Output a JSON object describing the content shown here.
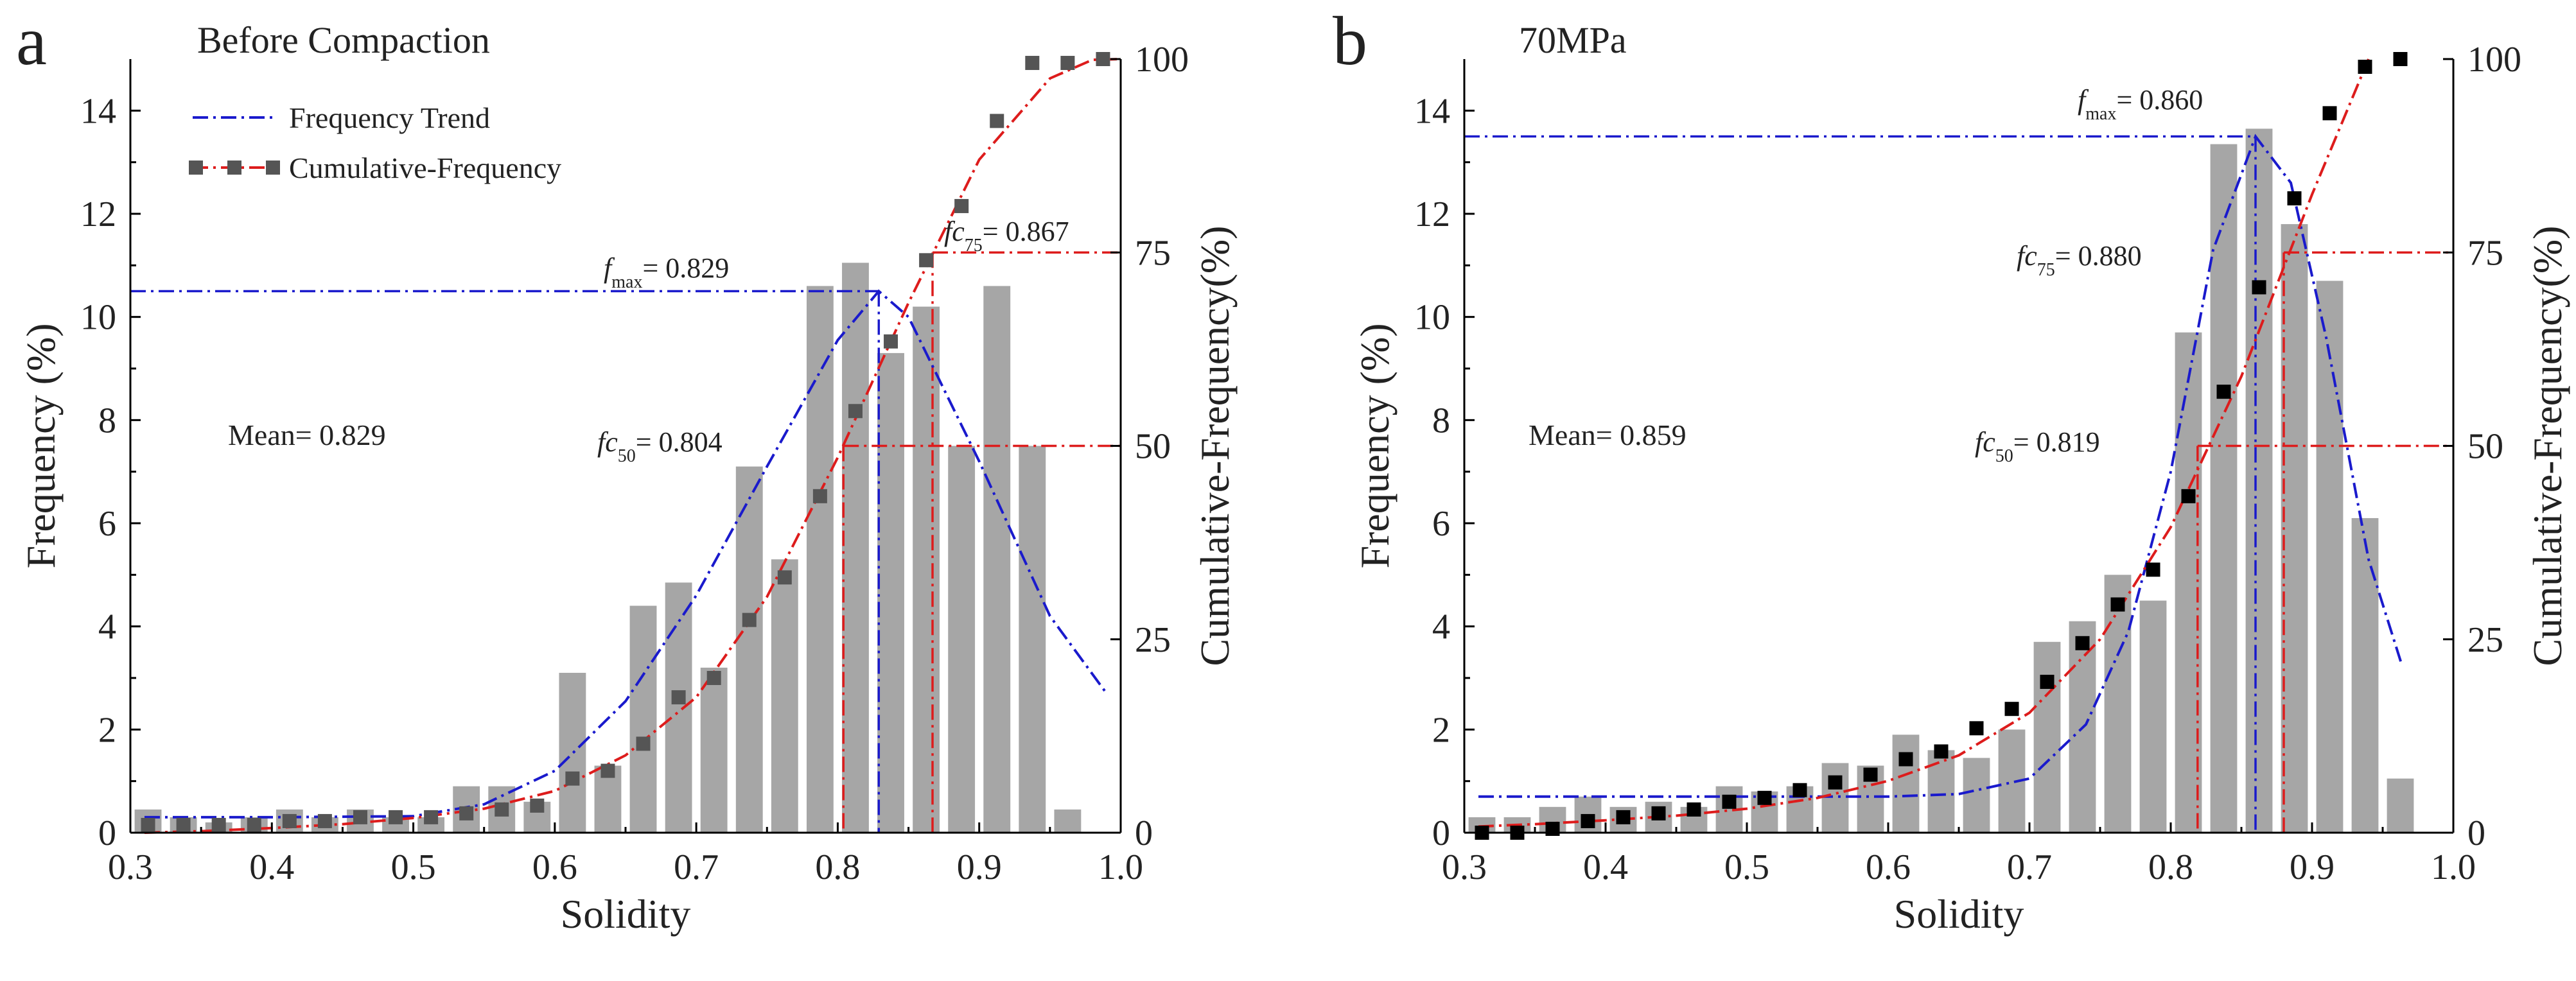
{
  "colors": {
    "bar": "#a6a6a6",
    "trend": "#1a1acc",
    "cumulative": "#dd1c1c",
    "marker_a": "#555555",
    "marker_b": "#000000",
    "axis": "#000000",
    "text": "#222222"
  },
  "chart_data": [
    {
      "panel_letter": "a",
      "title": "Before Compaction",
      "type": "bar",
      "xlabel": "Solidity",
      "ylabel": "Frequency (%)",
      "y2label": "Cumulative-Frequency(%)",
      "xlim": [
        0.3,
        1.0
      ],
      "ylim": [
        0,
        15
      ],
      "y2lim": [
        0,
        100
      ],
      "xticks": [
        "0.3",
        "0.4",
        "0.5",
        "0.6",
        "0.7",
        "0.8",
        "0.9",
        "1.0"
      ],
      "yticks": [
        "0",
        "2",
        "4",
        "6",
        "8",
        "10",
        "12",
        "14"
      ],
      "y2ticks": [
        "0",
        "25",
        "50",
        "75",
        "100"
      ],
      "legend": {
        "placement": "top-left",
        "trend_label": "Frequency Trend",
        "cumulative_label": "Cumulative-Frequency"
      },
      "bars": {
        "x": [
          0.3125,
          0.3375,
          0.3625,
          0.3875,
          0.4125,
          0.4375,
          0.4625,
          0.4875,
          0.5125,
          0.5375,
          0.5625,
          0.5875,
          0.6125,
          0.6375,
          0.6625,
          0.6875,
          0.7125,
          0.7375,
          0.7625,
          0.7875,
          0.8125,
          0.8375,
          0.8625,
          0.8875,
          0.9125,
          0.9375,
          0.9625
        ],
        "values": [
          0.45,
          0.3,
          0.2,
          0.3,
          0.45,
          0.3,
          0.45,
          0.3,
          0.3,
          0.9,
          0.9,
          0.6,
          3.1,
          1.3,
          4.4,
          4.85,
          3.2,
          7.1,
          5.3,
          10.6,
          11.05,
          9.3,
          10.2,
          7.5,
          10.6,
          7.5,
          0.45
        ],
        "width": 0.019
      },
      "cumulative_points": {
        "x": [
          0.3125,
          0.3375,
          0.3625,
          0.3875,
          0.4125,
          0.4375,
          0.4625,
          0.4875,
          0.5125,
          0.5375,
          0.5625,
          0.5875,
          0.6125,
          0.6375,
          0.6625,
          0.6875,
          0.7125,
          0.7375,
          0.7625,
          0.7875,
          0.8125,
          0.8375,
          0.8625,
          0.8875,
          0.9125,
          0.9375,
          0.9625,
          0.9875
        ],
        "y": [
          1,
          1,
          1,
          1,
          1.5,
          1.5,
          2,
          2,
          2,
          2.5,
          3,
          3.5,
          7,
          8,
          11.5,
          17.5,
          20,
          27.5,
          33,
          43.5,
          54.5,
          63.5,
          74,
          81,
          92,
          99.5,
          99.5,
          100
        ]
      },
      "cumulative_fit": {
        "x": [
          0.31,
          0.35,
          0.4,
          0.45,
          0.5,
          0.55,
          0.6,
          0.65,
          0.7,
          0.75,
          0.8,
          0.85,
          0.9,
          0.95,
          0.98,
          1.0
        ],
        "y": [
          0,
          0.2,
          0.6,
          1.1,
          1.9,
          3.1,
          5.4,
          10.0,
          17.5,
          30.5,
          48.5,
          68.5,
          87.0,
          97.5,
          99.9,
          100
        ]
      },
      "trend_fit": {
        "x": [
          0.31,
          0.4,
          0.5,
          0.55,
          0.6,
          0.65,
          0.7,
          0.75,
          0.8,
          0.829,
          0.85,
          0.9,
          0.95,
          0.99
        ],
        "y": [
          0.3,
          0.3,
          0.32,
          0.55,
          1.2,
          2.55,
          4.6,
          7.1,
          9.55,
          10.5,
          10.0,
          7.2,
          4.2,
          2.7
        ]
      },
      "markers": {
        "fmax": {
          "x": 0.829,
          "y": 10.5,
          "label_prefix": "f",
          "label_sub": "max",
          "label_value": "= 0.829"
        },
        "fc50": {
          "x": 0.804,
          "y2": 50,
          "label_prefix": "fc",
          "label_sub": "50",
          "label_value": "= 0.804"
        },
        "fc75": {
          "x": 0.867,
          "y2": 75,
          "label_prefix": "fc",
          "label_sub": "75",
          "label_value": "= 0.867"
        }
      },
      "mean_label": "Mean= 0.829"
    },
    {
      "panel_letter": "b",
      "title": "70MPa",
      "type": "bar",
      "xlabel": "Solidity",
      "ylabel": "Frequency (%)",
      "y2label": "Cumulative-Frequency(%)",
      "xlim": [
        0.3,
        1.0
      ],
      "ylim": [
        0,
        15
      ],
      "y2lim": [
        0,
        100
      ],
      "xticks": [
        "0.3",
        "0.4",
        "0.5",
        "0.6",
        "0.7",
        "0.8",
        "0.9",
        "1.0"
      ],
      "yticks": [
        "0",
        "2",
        "4",
        "6",
        "8",
        "10",
        "12",
        "14"
      ],
      "y2ticks": [
        "0",
        "25",
        "50",
        "75",
        "100"
      ],
      "bars": {
        "x": [
          0.3125,
          0.3375,
          0.3625,
          0.3875,
          0.4125,
          0.4375,
          0.4625,
          0.4875,
          0.5125,
          0.5375,
          0.5625,
          0.5875,
          0.6125,
          0.6375,
          0.6625,
          0.6875,
          0.7125,
          0.7375,
          0.7625,
          0.7875,
          0.8125,
          0.8375,
          0.8625,
          0.8875,
          0.9125,
          0.9375,
          0.9625
        ],
        "values": [
          0.3,
          0.3,
          0.5,
          0.7,
          0.5,
          0.6,
          0.5,
          0.9,
          0.8,
          0.9,
          1.35,
          1.3,
          1.9,
          1.6,
          1.45,
          2.0,
          3.7,
          4.1,
          5.0,
          4.5,
          9.7,
          13.35,
          13.65,
          11.8,
          10.7,
          6.1,
          1.05
        ],
        "width": 0.019
      },
      "cumulative_points": {
        "x": [
          0.3125,
          0.3375,
          0.3625,
          0.3875,
          0.4125,
          0.4375,
          0.4625,
          0.4875,
          0.5125,
          0.5375,
          0.5625,
          0.5875,
          0.6125,
          0.6375,
          0.6625,
          0.6875,
          0.7125,
          0.7375,
          0.7625,
          0.7875,
          0.8125,
          0.8375,
          0.8625,
          0.8875,
          0.9125,
          0.9375,
          0.9625
        ],
        "y": [
          0,
          0,
          0.5,
          1.5,
          2,
          2.5,
          3,
          4,
          4.5,
          5.5,
          6.5,
          7.5,
          9.5,
          10.5,
          13.5,
          16,
          19.5,
          24.5,
          29.5,
          34,
          43.5,
          57,
          70.5,
          82,
          93,
          99,
          100
        ]
      },
      "cumulative_fit": {
        "x": [
          0.31,
          0.35,
          0.4,
          0.45,
          0.5,
          0.55,
          0.6,
          0.65,
          0.7,
          0.75,
          0.8,
          0.85,
          0.9,
          0.94
        ],
        "y": [
          0.8,
          1.1,
          1.6,
          2.2,
          3.1,
          4.5,
          6.7,
          10.0,
          15.5,
          25.0,
          39.5,
          59.0,
          82.5,
          100
        ]
      },
      "trend_fit": {
        "x": [
          0.31,
          0.4,
          0.5,
          0.6,
          0.65,
          0.7,
          0.74,
          0.77,
          0.8,
          0.83,
          0.86,
          0.885,
          0.91,
          0.94,
          0.963
        ],
        "y": [
          0.7,
          0.7,
          0.7,
          0.7,
          0.75,
          1.05,
          2.1,
          3.9,
          7.0,
          11.3,
          13.5,
          12.6,
          9.6,
          5.3,
          3.3
        ]
      },
      "markers": {
        "fmax": {
          "x": 0.86,
          "y": 13.5,
          "label_prefix": "f",
          "label_sub": "max",
          "label_value": "= 0.860"
        },
        "fc50": {
          "x": 0.819,
          "y2": 50,
          "label_prefix": "fc",
          "label_sub": "50",
          "label_value": "= 0.819"
        },
        "fc75": {
          "x": 0.88,
          "y2": 75,
          "label_prefix": "fc",
          "label_sub": "75",
          "label_value": "= 0.880"
        }
      },
      "mean_label": "Mean= 0.859"
    }
  ]
}
